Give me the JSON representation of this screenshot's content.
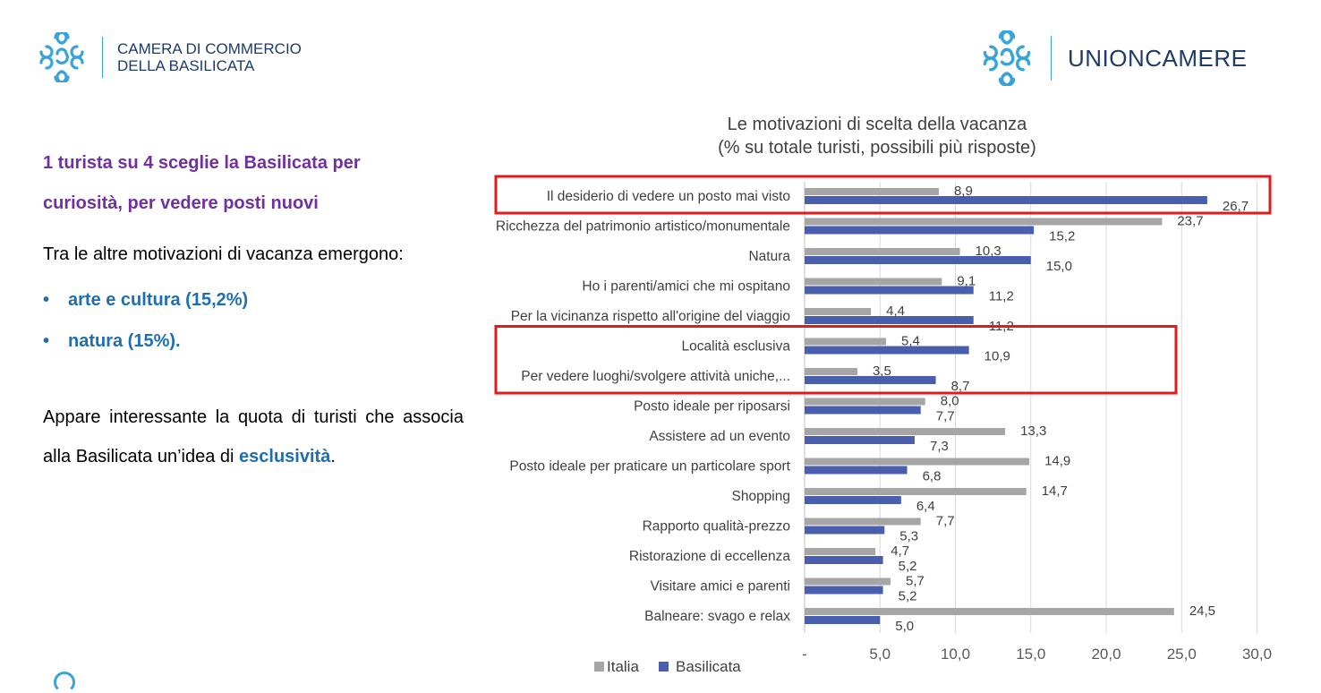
{
  "header": {
    "left_logo": {
      "line1": "CAMERA DI COMMERCIO",
      "line2": "DELLA BASILICATA",
      "icon": "camera-commercio-logo-icon"
    },
    "right_logo": {
      "text": "UNIONCAMERE",
      "icon": "unioncamere-logo-icon"
    },
    "logo_color": "#3aa4d8"
  },
  "left_panel": {
    "headline_line1": "1 turista su 4 sceglie la Basilicata per",
    "headline_line2": "curiosità, per vedere posti nuovi",
    "intro": "Tra le altre motivazioni di vacanza emergono:",
    "bullets": [
      "arte e cultura (15,2%)",
      "natura (15%)."
    ],
    "paragraph_start": "Appare interessante la quota di turisti che associa alla Basilicata un’idea di ",
    "paragraph_highlight": "esclusività",
    "paragraph_end": "."
  },
  "chart_data": {
    "type": "bar",
    "orientation": "horizontal",
    "title": "Le motivazioni di scelta della vacanza",
    "subtitle": "(% su totale turisti, possibili più risposte)",
    "categories": [
      "Il desiderio di vedere un posto mai visto",
      "Ricchezza del patrimonio artistico/monumentale",
      "Natura",
      "Ho i parenti/amici che mi ospitano",
      "Per la vicinanza rispetto all'origine del viaggio",
      "Località esclusiva",
      "Per vedere luoghi/svolgere attività uniche,...",
      "Posto ideale per riposarsi",
      "Assistere ad un evento",
      "Posto ideale per praticare un particolare sport",
      "Shopping",
      "Rapporto qualità-prezzo",
      "Ristorazione di eccellenza",
      "Visitare amici e parenti",
      "Balneare: svago e relax"
    ],
    "series": [
      {
        "name": "Italia",
        "color": "#a6a6a6",
        "values": [
          8.9,
          23.7,
          10.3,
          9.1,
          4.4,
          5.4,
          3.5,
          8.0,
          13.3,
          14.9,
          14.7,
          7.7,
          4.7,
          5.7,
          24.5
        ],
        "labels": [
          "8,9",
          "23,7",
          "10,3",
          "9,1",
          "4,4",
          "5,4",
          "3,5",
          "8,0",
          "13,3",
          "14,9",
          "14,7",
          "7,7",
          "4,7",
          "5,7",
          "24,5"
        ]
      },
      {
        "name": "Basilicata",
        "color": "#4a5eae",
        "values": [
          26.7,
          15.2,
          15.0,
          11.2,
          11.2,
          10.9,
          8.7,
          7.7,
          7.3,
          6.8,
          6.4,
          5.3,
          5.2,
          5.2,
          5.0
        ],
        "labels": [
          "26,7",
          "15,2",
          "15,0",
          "11,2",
          "11,2",
          "10,9",
          "8,7",
          "7,7",
          "7,3",
          "6,8",
          "6,4",
          "5,3",
          "5,2",
          "5,2",
          "5,0"
        ]
      }
    ],
    "xlim": [
      0,
      30
    ],
    "x_ticks": [
      0,
      5,
      10,
      15,
      20,
      25,
      30
    ],
    "x_tick_labels": [
      "-",
      "5,0",
      "10,0",
      "15,0",
      "20,0",
      "25,0",
      "30,0"
    ],
    "grid": true,
    "legend": "bottom",
    "highlight_color": "#e31a1c",
    "highlighted_groups": [
      [
        0
      ],
      [
        5,
        6
      ]
    ]
  }
}
